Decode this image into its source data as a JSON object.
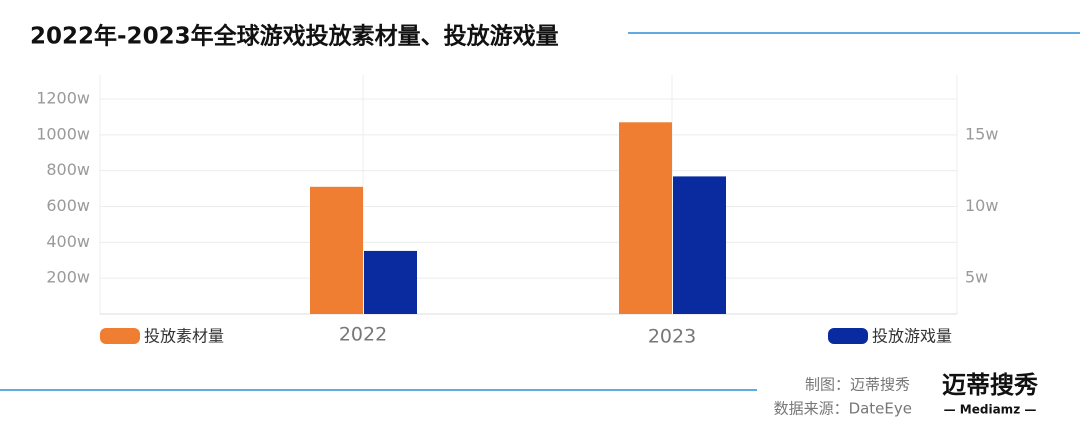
{
  "chart_data": {
    "type": "bar",
    "title": "2022年-2023年全球游戏投放素材量、投放游戏量",
    "categories": [
      "2022",
      "2023"
    ],
    "series": [
      {
        "name": "投放素材量",
        "color": "#ef7d32",
        "values": [
          710,
          1070
        ]
      },
      {
        "name": "投放游戏量",
        "color": "#0a2ba0",
        "values": [
          6.9,
          12.1
        ],
        "axis": "y2"
      }
    ],
    "ylim": [
      0,
      1200
    ],
    "yticks": [
      {
        "value": 200,
        "label": "200w"
      },
      {
        "value": 400,
        "label": "400w"
      },
      {
        "value": 600,
        "label": "600w"
      },
      {
        "value": 800,
        "label": "800w"
      },
      {
        "value": 1000,
        "label": "1000w"
      },
      {
        "value": 1200,
        "label": "1200w"
      }
    ],
    "y2lim": [
      2.5,
      17.5
    ],
    "y2ticks": [
      {
        "value": 5,
        "label": "5w"
      },
      {
        "value": 10,
        "label": "10w"
      },
      {
        "value": 15,
        "label": "15w"
      }
    ],
    "grid": true
  },
  "footer": {
    "credit": "制图：迈蒂搜秀",
    "source": "数据来源：DateEye",
    "logo": "迈蒂搜秀",
    "logo_sub": "— Mediamz —"
  }
}
